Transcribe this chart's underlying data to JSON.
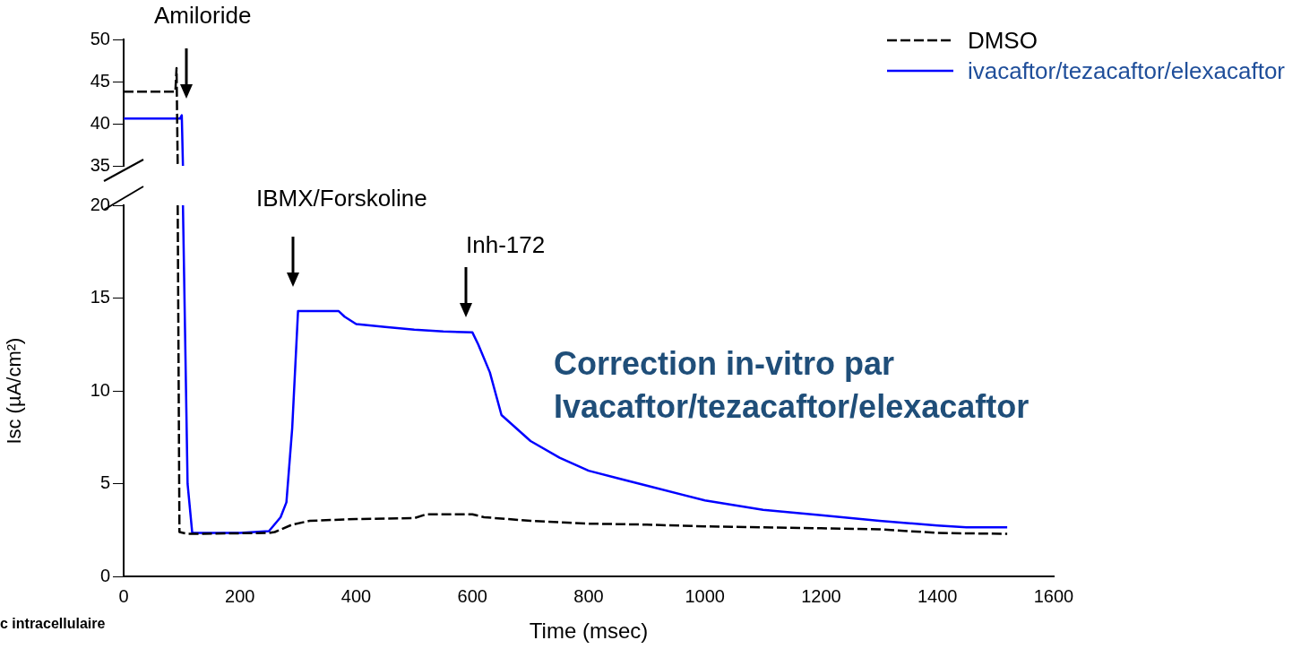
{
  "chart_data": [
    {
      "type": "line",
      "tick_labels": "y",
      "xlim": [
        0,
        1600
      ],
      "ylim": [
        35,
        50
      ],
      "yticks": [
        35,
        40,
        45,
        50
      ],
      "grid": false,
      "legend": "top right",
      "marker": "none",
      "annotations": [
        "Amiloride"
      ],
      "series": [
        {
          "name": "DMSO",
          "color": "#000000",
          "line_style": "dashed",
          "x": [
            0,
            89,
            91,
            93
          ],
          "values": [
            43.8,
            43.8,
            46.6,
            35
          ]
        },
        {
          "name": "ivacaftor/tezacaftor/elexacaftor",
          "color": "#0000ff",
          "line_style": "solid",
          "x": [
            0,
            97,
            100,
            102
          ],
          "values": [
            40.6,
            40.6,
            41,
            35
          ]
        }
      ]
    },
    {
      "type": "line",
      "xlabel": "Time (msec)",
      "ylabel": "Isc (µA/cm²)",
      "xlim": [
        0,
        1600
      ],
      "xticks": [
        0,
        200,
        400,
        600,
        800,
        1000,
        1200,
        1400,
        1600
      ],
      "ylim": [
        0,
        20
      ],
      "yticks": [
        0,
        5,
        10,
        15,
        20
      ],
      "grid": false,
      "marker": "none",
      "annotations": [
        "IBMX/Forskoline",
        "Inh-172",
        "Correction in-vitro par Ivacaftor/tezacaftor/elexacaftor",
        "c intracellulaire"
      ],
      "series": [
        {
          "color": "#000000",
          "line_style": "dashed",
          "x": [
            93,
            96,
            110,
            250,
            260,
            290,
            320,
            400,
            500,
            520,
            600,
            620,
            700,
            800,
            900,
            1000,
            1100,
            1200,
            1300,
            1400,
            1520
          ],
          "values": [
            20,
            2.4,
            2.3,
            2.35,
            2.4,
            2.8,
            3.0,
            3.1,
            3.15,
            3.35,
            3.35,
            3.2,
            3.0,
            2.85,
            2.8,
            2.7,
            2.65,
            2.6,
            2.55,
            2.35,
            2.3
          ]
        },
        {
          "color": "#0000ff",
          "line_style": "solid",
          "x": [
            102,
            110,
            118,
            200,
            250,
            270,
            280,
            290,
            300,
            370,
            380,
            400,
            450,
            500,
            550,
            600,
            610,
            630,
            650,
            700,
            750,
            800,
            850,
            900,
            1000,
            1100,
            1200,
            1300,
            1400,
            1450,
            1520
          ],
          "values": [
            20,
            5,
            2.35,
            2.35,
            2.45,
            3.2,
            4,
            8,
            14.3,
            14.3,
            14.0,
            13.6,
            13.45,
            13.3,
            13.2,
            13.15,
            12.5,
            11,
            8.7,
            7.3,
            6.4,
            5.7,
            5.3,
            4.9,
            4.1,
            3.6,
            3.3,
            3.0,
            2.75,
            2.65,
            2.65
          ]
        }
      ]
    }
  ]
}
